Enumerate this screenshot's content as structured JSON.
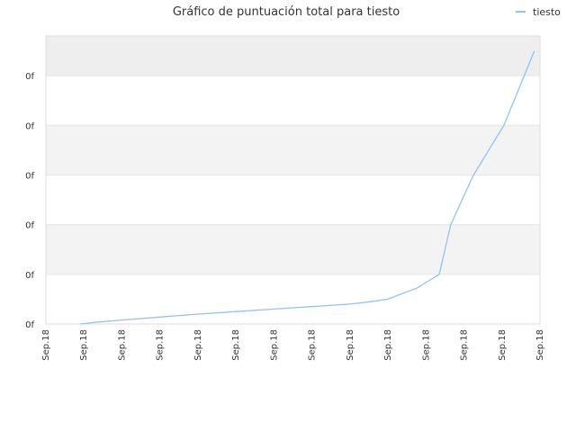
{
  "chart_data": {
    "type": "line",
    "title": "Gráfico de puntuación total para tiesto",
    "xlabel": "",
    "ylabel": "",
    "x_tick_labels": [
      "Sep.18",
      "Sep.18",
      "Sep.18",
      "Sep.18",
      "Sep.18",
      "Sep.18",
      "Sep.18",
      "Sep.18",
      "Sep.18",
      "Sep.18",
      "Sep.18",
      "Sep.18",
      "Sep.18",
      "Sep.18"
    ],
    "y_tick_labels": [
      "0f",
      "0f",
      "0f",
      "0f",
      "0f",
      "0f"
    ],
    "ylim": [
      0,
      5.8
    ],
    "grid": true,
    "legend_position": "top-right",
    "series": [
      {
        "name": "tiesto",
        "color": "#90c4f0",
        "x": [
          0.9,
          1.05,
          1.25,
          2,
          3,
          4,
          5,
          6,
          7,
          8,
          8.55,
          9,
          9.5,
          9.75,
          10.35,
          10.65,
          11.25,
          11.65,
          12.05,
          12.85
        ],
        "values": [
          0,
          0.01,
          0.03,
          0.08,
          0.14,
          0.2,
          0.25,
          0.3,
          0.35,
          0.4,
          0.45,
          0.5,
          0.65,
          0.72,
          1.0,
          2.0,
          3.0,
          3.5,
          4.0,
          5.5
        ]
      }
    ]
  }
}
